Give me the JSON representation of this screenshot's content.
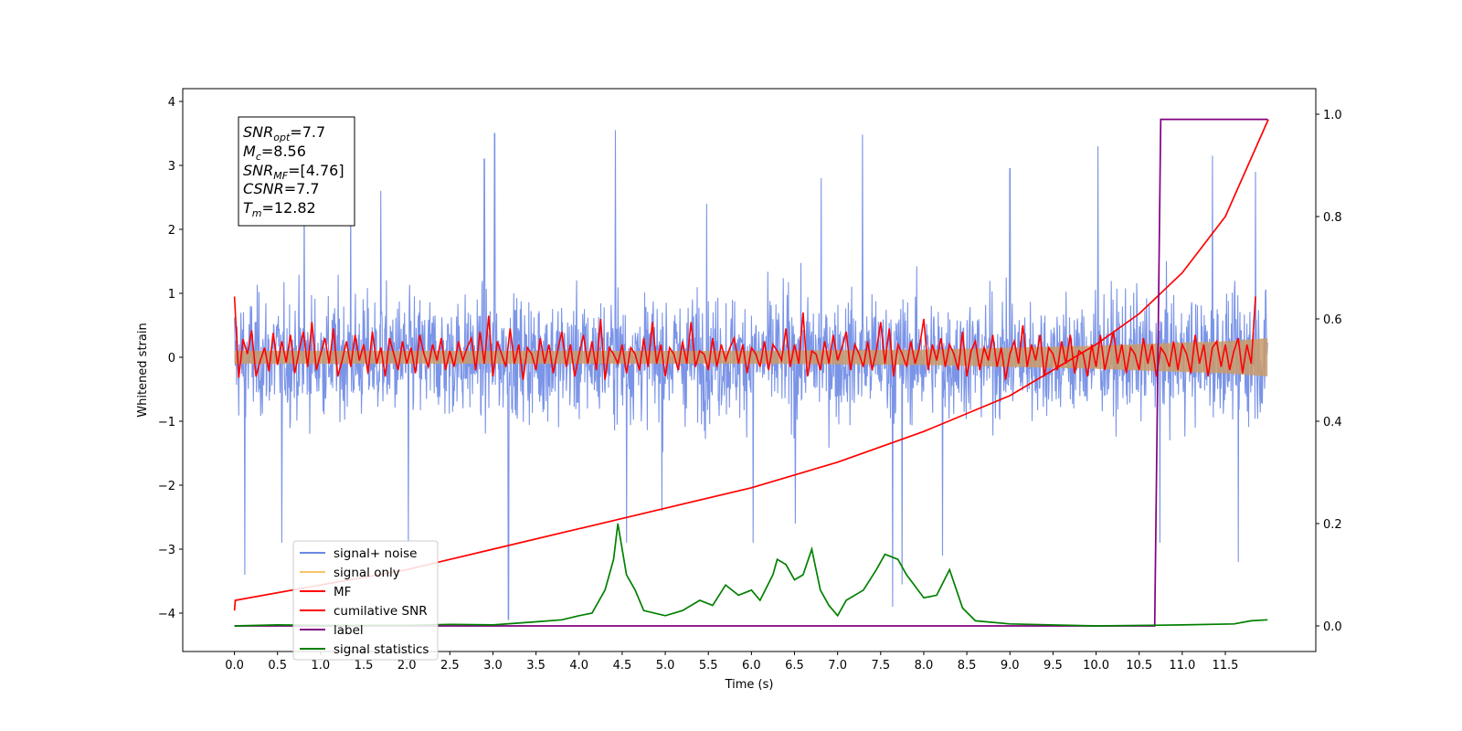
{
  "chart_data": {
    "type": "line",
    "xlabel": "Time (s)",
    "ylabel": "Whitened strain",
    "xlim": [
      -0.6,
      12.55
    ],
    "ylim": [
      -4.6,
      4.2
    ],
    "y2lim": [
      -0.05,
      1.05
    ],
    "x_ticks": [
      "0.0",
      "0.5",
      "1.0",
      "1.5",
      "2.0",
      "2.5",
      "3.0",
      "3.5",
      "4.0",
      "4.5",
      "5.0",
      "5.5",
      "6.0",
      "6.5",
      "7.0",
      "7.5",
      "8.0",
      "8.5",
      "9.0",
      "9.5",
      "10.0",
      "10.5",
      "11.0",
      "11.5"
    ],
    "y_ticks": [
      "4",
      "3",
      "2",
      "1",
      "0",
      "−1",
      "−2",
      "−3",
      "−4"
    ],
    "y2_ticks": [
      "1.0",
      "0.8",
      "0.6",
      "0.4",
      "0.2",
      "0.0"
    ],
    "grid": false,
    "legend_position": "lower-left",
    "info_box": {
      "snr_opt": {
        "label": "SNR",
        "sub": "opt",
        "value": "=7.7"
      },
      "mc": {
        "label": "M",
        "sub": "c",
        "value": "=8.56"
      },
      "snr_mf": {
        "label": "SNR",
        "sub": "MF",
        "value": "=[4.76]"
      },
      "csnr": {
        "label": "CSNR",
        "sub": "",
        "value": "=7.7"
      },
      "tm": {
        "label": "T",
        "sub": "m",
        "value": "=12.82"
      }
    },
    "series": [
      {
        "name": "signal+ noise",
        "axis": "left",
        "color": "#6b88e4",
        "noise_sigma": 0.85,
        "spike_points": [
          [
            0.12,
            -3.4
          ],
          [
            0.55,
            -2.9
          ],
          [
            0.81,
            2.7
          ],
          [
            1.35,
            2.75
          ],
          [
            1.7,
            2.6
          ],
          [
            2.02,
            -2.9
          ],
          [
            2.9,
            3.1
          ],
          [
            3.18,
            -4.1
          ],
          [
            3.02,
            3.5
          ],
          [
            4.42,
            3.55
          ],
          [
            4.55,
            -2.9
          ],
          [
            4.96,
            -2.4
          ],
          [
            5.48,
            2.4
          ],
          [
            6.02,
            -2.9
          ],
          [
            6.51,
            -2.6
          ],
          [
            6.81,
            2.8
          ],
          [
            7.29,
            3.48
          ],
          [
            7.64,
            -3.9
          ],
          [
            7.75,
            -3.55
          ],
          [
            8.22,
            -3.1
          ],
          [
            9.0,
            2.95
          ],
          [
            10.02,
            3.3
          ],
          [
            10.74,
            -2.9
          ],
          [
            11.35,
            3.15
          ],
          [
            11.65,
            -3.2
          ],
          [
            11.85,
            2.9
          ]
        ]
      },
      {
        "name": "signal only",
        "axis": "left",
        "color": "#f7c46b",
        "envelope": [
          [
            0.0,
            0.1
          ],
          [
            2.0,
            0.1
          ],
          [
            4.0,
            0.1
          ],
          [
            6.0,
            0.1
          ],
          [
            8.0,
            0.12
          ],
          [
            9.0,
            0.15
          ],
          [
            10.0,
            0.18
          ],
          [
            10.8,
            0.22
          ],
          [
            11.5,
            0.25
          ],
          [
            12.0,
            0.3
          ]
        ]
      },
      {
        "name": "MF",
        "axis": "left",
        "color": "#ff0000",
        "x_start": 0.0,
        "x_step": 0.05,
        "values": [
          0.95,
          -0.32,
          0.28,
          0.05,
          0.42,
          -0.3,
          -0.05,
          0.15,
          -0.22,
          0.38,
          -0.12,
          0.25,
          -0.08,
          0.35,
          -0.25,
          0.1,
          0.4,
          -0.15,
          0.55,
          -0.2,
          0.05,
          0.3,
          -0.1,
          0.45,
          -0.3,
          -0.05,
          0.25,
          -0.15,
          0.35,
          -0.05,
          0.2,
          -0.25,
          0.4,
          -0.1,
          0.15,
          -0.3,
          0.3,
          0.05,
          -0.2,
          0.25,
          -0.1,
          0.15,
          -0.25,
          0.35,
          0.05,
          -0.15,
          0.2,
          -0.05,
          0.3,
          -0.2,
          0.1,
          -0.15,
          0.25,
          -0.05,
          0.15,
          0.3,
          -0.2,
          0.4,
          -0.1,
          0.65,
          -0.3,
          0.25,
          0.05,
          -0.15,
          0.45,
          -0.1,
          0.2,
          -0.35,
          0.15,
          0.05,
          -0.2,
          0.3,
          -0.1,
          0.2,
          -0.25,
          0.1,
          0.4,
          -0.15,
          0.2,
          -0.3,
          0.05,
          0.35,
          -0.1,
          0.25,
          -0.2,
          0.6,
          -0.35,
          0.15,
          0.05,
          -0.1,
          0.2,
          -0.25,
          0.15,
          0.05,
          -0.2,
          0.3,
          -0.15,
          0.55,
          -0.1,
          0.2,
          -0.3,
          0.15,
          0.05,
          -0.2,
          0.25,
          -0.1,
          0.55,
          -0.15,
          0.1,
          0.05,
          -0.2,
          0.3,
          -0.15,
          0.2,
          -0.05,
          0.15,
          0.3,
          -0.1,
          0.2,
          -0.25,
          0.15,
          0.05,
          -0.15,
          0.25,
          -0.2,
          0.2,
          0.1,
          -0.05,
          0.45,
          -0.15,
          0.2,
          -0.1,
          0.7,
          -0.3,
          0.1,
          0.05,
          -0.2,
          0.25,
          -0.1,
          0.35,
          -0.05,
          0.15,
          0.4,
          -0.2,
          0.2,
          0.05,
          -0.15,
          0.25,
          -0.2,
          0.1,
          0.55,
          -0.1,
          0.45,
          -0.3,
          0.2,
          0.05,
          -0.15,
          0.25,
          -0.1,
          0.15,
          0.6,
          -0.2,
          0.2,
          -0.05,
          0.3,
          -0.15,
          0.2,
          0.05,
          -0.2,
          0.4,
          -0.3,
          0.1,
          0.25,
          -0.2,
          0.15,
          -0.05,
          0.35,
          -0.15,
          0.15,
          -0.35,
          0.05,
          0.25,
          -0.1,
          0.5,
          -0.15,
          0.2,
          -0.05,
          0.35,
          -0.3,
          0.15,
          0.05,
          -0.2,
          0.25,
          -0.1,
          0.35,
          -0.25,
          0.1,
          0.05,
          -0.3,
          0.2,
          -0.15,
          0.35,
          -0.2,
          0.1,
          0.4,
          -0.1,
          0.2,
          -0.25,
          0.15,
          0.05,
          -0.2,
          0.3,
          -0.1,
          0.2,
          -0.3,
          0.15,
          0.05,
          -0.15,
          0.25,
          -0.2,
          0.2,
          0.05,
          -0.25,
          0.35,
          -0.1,
          0.2,
          -0.3,
          0.15,
          0.25,
          -0.15,
          0.2,
          -0.2,
          0.1,
          0.3,
          -0.25,
          0.2,
          -0.1,
          0.95
        ]
      },
      {
        "name": "cumilative SNR",
        "axis": "right",
        "color": "#ff0000",
        "points": [
          [
            0.0,
            0.03
          ],
          [
            0.01,
            0.05
          ],
          [
            1.0,
            0.08
          ],
          [
            2.0,
            0.11
          ],
          [
            3.0,
            0.15
          ],
          [
            4.0,
            0.19
          ],
          [
            5.0,
            0.23
          ],
          [
            6.0,
            0.27
          ],
          [
            7.0,
            0.32
          ],
          [
            8.0,
            0.38
          ],
          [
            9.0,
            0.45
          ],
          [
            9.5,
            0.5
          ],
          [
            10.0,
            0.55
          ],
          [
            10.5,
            0.61
          ],
          [
            11.0,
            0.69
          ],
          [
            11.5,
            0.8
          ],
          [
            12.0,
            0.99
          ]
        ]
      },
      {
        "name": "label",
        "axis": "right",
        "color": "#800080",
        "points": [
          [
            0.0,
            0.0
          ],
          [
            10.68,
            0.0
          ],
          [
            10.75,
            0.99
          ],
          [
            11.99,
            0.99
          ]
        ]
      },
      {
        "name": "signal statistics",
        "axis": "right",
        "color": "#008000",
        "points": [
          [
            0.0,
            0.0
          ],
          [
            0.5,
            0.002
          ],
          [
            1.0,
            0.001
          ],
          [
            2.0,
            0.001
          ],
          [
            2.5,
            0.003
          ],
          [
            3.0,
            0.002
          ],
          [
            3.5,
            0.008
          ],
          [
            3.8,
            0.012
          ],
          [
            4.0,
            0.02
          ],
          [
            4.15,
            0.025
          ],
          [
            4.3,
            0.07
          ],
          [
            4.4,
            0.13
          ],
          [
            4.45,
            0.2
          ],
          [
            4.55,
            0.1
          ],
          [
            4.65,
            0.07
          ],
          [
            4.75,
            0.03
          ],
          [
            5.0,
            0.02
          ],
          [
            5.2,
            0.03
          ],
          [
            5.4,
            0.05
          ],
          [
            5.55,
            0.04
          ],
          [
            5.7,
            0.08
          ],
          [
            5.85,
            0.06
          ],
          [
            6.0,
            0.07
          ],
          [
            6.1,
            0.05
          ],
          [
            6.25,
            0.1
          ],
          [
            6.3,
            0.13
          ],
          [
            6.4,
            0.12
          ],
          [
            6.5,
            0.09
          ],
          [
            6.6,
            0.1
          ],
          [
            6.7,
            0.15
          ],
          [
            6.8,
            0.07
          ],
          [
            6.9,
            0.04
          ],
          [
            7.0,
            0.02
          ],
          [
            7.1,
            0.05
          ],
          [
            7.3,
            0.07
          ],
          [
            7.45,
            0.11
          ],
          [
            7.55,
            0.14
          ],
          [
            7.7,
            0.13
          ],
          [
            7.8,
            0.1
          ],
          [
            8.0,
            0.055
          ],
          [
            8.15,
            0.06
          ],
          [
            8.3,
            0.11
          ],
          [
            8.45,
            0.035
          ],
          [
            8.6,
            0.01
          ],
          [
            9.0,
            0.004
          ],
          [
            10.0,
            0.0
          ],
          [
            11.0,
            0.002
          ],
          [
            11.6,
            0.004
          ],
          [
            11.8,
            0.01
          ],
          [
            11.99,
            0.012
          ]
        ]
      }
    ]
  }
}
